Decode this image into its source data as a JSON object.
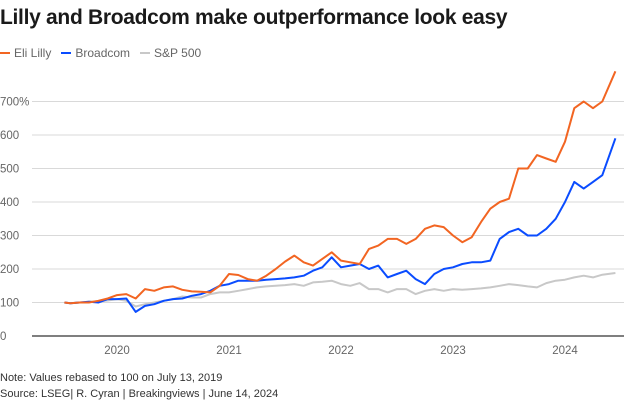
{
  "chart_data": {
    "type": "line",
    "title": "Lilly and Broadcom make outperformance look easy",
    "xlabel": "",
    "ylabel": "",
    "ylim": [
      0,
      800
    ],
    "yticks": [
      0,
      100,
      200,
      300,
      400,
      500,
      600,
      700
    ],
    "ytick_labels": [
      "0",
      "100",
      "200",
      "300",
      "400",
      "500",
      "600",
      "700%"
    ],
    "xticks": [
      "2020",
      "2021",
      "2022",
      "2023",
      "2024"
    ],
    "grid": "horizontal",
    "legend": "top-left",
    "x": [
      "2019-07",
      "2019-08",
      "2019-09",
      "2019-10",
      "2019-11",
      "2019-12",
      "2020-01",
      "2020-02",
      "2020-03",
      "2020-04",
      "2020-05",
      "2020-06",
      "2020-07",
      "2020-08",
      "2020-09",
      "2020-10",
      "2020-11",
      "2020-12",
      "2021-01",
      "2021-02",
      "2021-03",
      "2021-04",
      "2021-05",
      "2021-06",
      "2021-07",
      "2021-08",
      "2021-09",
      "2021-10",
      "2021-11",
      "2021-12",
      "2022-01",
      "2022-02",
      "2022-03",
      "2022-04",
      "2022-05",
      "2022-06",
      "2022-07",
      "2022-08",
      "2022-09",
      "2022-10",
      "2022-11",
      "2022-12",
      "2023-01",
      "2023-02",
      "2023-03",
      "2023-04",
      "2023-05",
      "2023-06",
      "2023-07",
      "2023-08",
      "2023-09",
      "2023-10",
      "2023-11",
      "2023-12",
      "2024-01",
      "2024-02",
      "2024-03",
      "2024-04",
      "2024-05",
      "2024-06"
    ],
    "series": [
      {
        "name": "Eli Lilly",
        "color": "#f26522",
        "values": [
          100,
          98,
          100,
          100,
          105,
          112,
          122,
          125,
          112,
          140,
          135,
          145,
          148,
          138,
          133,
          132,
          130,
          150,
          185,
          182,
          170,
          165,
          180,
          200,
          222,
          240,
          220,
          210,
          230,
          250,
          225,
          220,
          215,
          260,
          270,
          290,
          290,
          275,
          290,
          320,
          330,
          325,
          300,
          280,
          295,
          340,
          380,
          400,
          410,
          500,
          500,
          540,
          530,
          520,
          580,
          680,
          700,
          680,
          700,
          790
        ]
      },
      {
        "name": "Broadcom",
        "color": "#0a4cff",
        "values": [
          100,
          98,
          100,
          102,
          100,
          110,
          110,
          112,
          72,
          90,
          95,
          105,
          110,
          112,
          120,
          125,
          135,
          150,
          155,
          165,
          165,
          165,
          168,
          170,
          172,
          175,
          180,
          195,
          205,
          235,
          205,
          210,
          215,
          200,
          210,
          175,
          185,
          195,
          170,
          155,
          185,
          200,
          205,
          215,
          220,
          220,
          225,
          290,
          310,
          320,
          300,
          300,
          320,
          350,
          400,
          460,
          440,
          460,
          480,
          590
        ]
      },
      {
        "name": "S&P 500",
        "color": "#c8c8c8",
        "values": [
          100,
          98,
          100,
          102,
          104,
          106,
          110,
          105,
          88,
          95,
          100,
          105,
          110,
          118,
          115,
          115,
          125,
          130,
          130,
          135,
          140,
          145,
          148,
          150,
          152,
          155,
          150,
          160,
          162,
          165,
          155,
          150,
          158,
          140,
          140,
          130,
          140,
          140,
          125,
          135,
          140,
          135,
          140,
          138,
          140,
          142,
          145,
          150,
          155,
          152,
          148,
          145,
          158,
          165,
          168,
          175,
          180,
          175,
          183,
          188
        ]
      }
    ]
  },
  "note": "Note: Values rebased to 100 on July 13, 2019",
  "source": "Source: LSEG| R. Cyran | Breakingviews | June 14, 2024"
}
